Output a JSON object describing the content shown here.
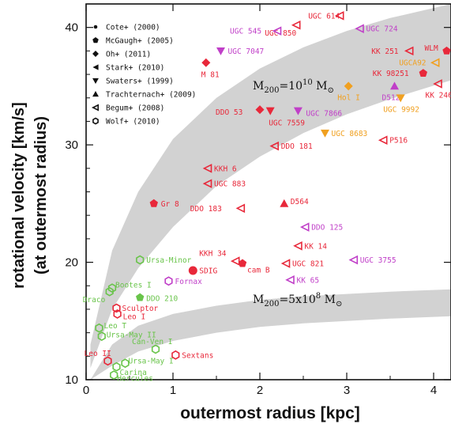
{
  "chart_data": {
    "type": "scatter",
    "xlabel": "outermost radius [kpc]",
    "ylabel_line1": "rotational velocity [km/s]",
    "ylabel_line2": "(at outermost radius)",
    "xlim": [
      0,
      4.2
    ],
    "ylim": [
      10,
      42
    ],
    "xticks": [
      0,
      1,
      2,
      3,
      4
    ],
    "yticks": [
      10,
      20,
      30,
      40
    ],
    "legend": [
      {
        "label": "Cote+ (2000)",
        "marker": "circle-filled-small"
      },
      {
        "label": "McGaugh+ (2005)",
        "marker": "pentagon"
      },
      {
        "label": "Oh+ (2011)",
        "marker": "diamond"
      },
      {
        "label": "Stark+ (2010)",
        "marker": "tri-left"
      },
      {
        "label": "Swaters+ (1999)",
        "marker": "tri-down"
      },
      {
        "label": "Trachternach+ (2009)",
        "marker": "tri-up"
      },
      {
        "label": "Begum+ (2008)",
        "marker": "tri-left-open"
      },
      {
        "label": "Wolf+ (2010)",
        "marker": "circle-open"
      }
    ],
    "bands": [
      {
        "label_main": "M",
        "label_sub": "200",
        "label_value": "=10",
        "label_exp": "10",
        "label_unit": "M",
        "label_unit_sub": "⊙",
        "x": [
          0.05,
          0.3,
          0.6,
          1.0,
          1.5,
          2.0,
          2.5,
          3.0,
          3.5,
          4.2
        ],
        "lower": [
          11.0,
          16.0,
          19.5,
          23.0,
          26.5,
          29.0,
          31.0,
          32.6,
          33.9,
          35.5
        ],
        "upper": [
          13.0,
          21.0,
          26.0,
          30.5,
          34.0,
          36.5,
          38.3,
          39.7,
          40.8,
          42.0
        ]
      },
      {
        "label_main": "M",
        "label_sub": "200",
        "label_value": "=5x10",
        "label_exp": "8",
        "label_unit": "M",
        "label_unit_sub": "⊙",
        "x": [
          0.05,
          0.3,
          0.6,
          1.0,
          1.5,
          2.0,
          2.5,
          3.0,
          3.5,
          4.2
        ],
        "lower": [
          10.0,
          11.2,
          12.4,
          13.3,
          14.0,
          14.5,
          14.8,
          15.0,
          15.2,
          15.4
        ],
        "upper": [
          10.0,
          13.0,
          14.6,
          15.6,
          16.3,
          16.8,
          17.1,
          17.3,
          17.5,
          17.7
        ]
      }
    ],
    "points": [
      {
        "label": "UGC 614",
        "x": 2.92,
        "y": 41.0,
        "marker": "tri-left-open",
        "color": "#e8283a",
        "lx": -40,
        "ly": 0
      },
      {
        "label": "UGC 850",
        "x": 2.42,
        "y": 40.2,
        "marker": "tri-left-open",
        "color": "#e8283a",
        "lx": -40,
        "ly": 10
      },
      {
        "label": "UGC 545",
        "x": 2.2,
        "y": 39.7,
        "marker": "tri-left-open",
        "color": "#c03fc8",
        "lx": -60,
        "ly": 0
      },
      {
        "label": "UGC 724",
        "x": 3.15,
        "y": 39.9,
        "marker": "tri-left-open",
        "color": "#c03fc8",
        "lx": 8,
        "ly": 0
      },
      {
        "label": "UGC 7047",
        "x": 1.55,
        "y": 38.0,
        "marker": "tri-down",
        "color": "#c03fc8",
        "lx": 9,
        "ly": 0
      },
      {
        "label": "M 81",
        "x": 1.38,
        "y": 37.0,
        "marker": "diamond",
        "color": "#e8283a",
        "lx": -6,
        "ly": 15
      },
      {
        "label": "KK 251",
        "x": 3.72,
        "y": 38.0,
        "marker": "tri-left-open",
        "color": "#e8283a",
        "lx": -48,
        "ly": 0
      },
      {
        "label": "WLM",
        "x": 4.15,
        "y": 38.0,
        "marker": "pentagon",
        "color": "#e8283a",
        "lx": -28,
        "ly": -4
      },
      {
        "label": "UGCA92",
        "x": 4.02,
        "y": 37.0,
        "marker": "tri-left-open",
        "color": "#f0a020",
        "lx": -46,
        "ly": 0
      },
      {
        "label": "KK 98251",
        "x": 3.88,
        "y": 36.1,
        "marker": "pentagon",
        "color": "#e8283a",
        "lx": -64,
        "ly": 0
      },
      {
        "label": "Hol I",
        "x": 3.02,
        "y": 35.0,
        "marker": "diamond",
        "color": "#f0a020",
        "lx": -14,
        "ly": 14
      },
      {
        "label": "D512",
        "x": 3.55,
        "y": 35.0,
        "marker": "tri-up",
        "color": "#c03fc8",
        "lx": -16,
        "ly": 14
      },
      {
        "label": "KK 246",
        "x": 4.05,
        "y": 35.2,
        "marker": "tri-left-open",
        "color": "#e8283a",
        "lx": -16,
        "ly": 14
      },
      {
        "label": "UGC 9992",
        "x": 3.62,
        "y": 34.0,
        "marker": "tri-down",
        "color": "#f0a020",
        "lx": -22,
        "ly": 14
      },
      {
        "label": "DDO 53",
        "x": 2.0,
        "y": 33.0,
        "marker": "diamond",
        "color": "#e8283a",
        "lx": -56,
        "ly": 3
      },
      {
        "label": "UGC 7559",
        "x": 2.12,
        "y": 32.9,
        "marker": "tri-down",
        "color": "#e8283a",
        "lx": -2,
        "ly": 15
      },
      {
        "label": "UGC 7866",
        "x": 2.44,
        "y": 32.9,
        "marker": "tri-down",
        "color": "#c03fc8",
        "lx": 10,
        "ly": 3
      },
      {
        "label": "UGC 8683",
        "x": 2.75,
        "y": 31.0,
        "marker": "tri-down",
        "color": "#f0a020",
        "lx": 8,
        "ly": 0
      },
      {
        "label": "DDO 181",
        "x": 2.17,
        "y": 29.9,
        "marker": "tri-left-open",
        "color": "#e8283a",
        "lx": 8,
        "ly": 0
      },
      {
        "label": "P516",
        "x": 3.42,
        "y": 30.4,
        "marker": "tri-left-open",
        "color": "#e8283a",
        "lx": 8,
        "ly": 0
      },
      {
        "label": "KKH 6",
        "x": 1.4,
        "y": 28.0,
        "marker": "tri-left-open",
        "color": "#e8283a",
        "lx": 8,
        "ly": 0
      },
      {
        "label": "UGC 883",
        "x": 1.4,
        "y": 26.7,
        "marker": "tri-left-open",
        "color": "#e8283a",
        "lx": 8,
        "ly": 0
      },
      {
        "label": "Gr 8",
        "x": 0.78,
        "y": 25.0,
        "marker": "pentagon",
        "color": "#e8283a",
        "lx": 9,
        "ly": 0
      },
      {
        "label": "DDO 183",
        "x": 1.78,
        "y": 24.6,
        "marker": "tri-left-open",
        "color": "#e8283a",
        "lx": -64,
        "ly": 0
      },
      {
        "label": "D564",
        "x": 2.28,
        "y": 25.0,
        "marker": "tri-up",
        "color": "#e8283a",
        "lx": 8,
        "ly": -3
      },
      {
        "label": "DDO 125",
        "x": 2.52,
        "y": 23.0,
        "marker": "tri-left-open",
        "color": "#c03fc8",
        "lx": 8,
        "ly": 0
      },
      {
        "label": "KK 14",
        "x": 2.44,
        "y": 21.4,
        "marker": "tri-left-open",
        "color": "#e8283a",
        "lx": 8,
        "ly": 0
      },
      {
        "label": "KKH 34",
        "x": 1.72,
        "y": 20.1,
        "marker": "tri-left-open",
        "color": "#e8283a",
        "lx": -46,
        "ly": -10
      },
      {
        "label": "cam B",
        "x": 1.8,
        "y": 19.9,
        "marker": "pentagon",
        "color": "#e8283a",
        "lx": 6,
        "ly": 8
      },
      {
        "label": "UGC 821",
        "x": 2.3,
        "y": 19.9,
        "marker": "tri-left-open",
        "color": "#e8283a",
        "lx": 8,
        "ly": 0
      },
      {
        "label": "UGC 3755",
        "x": 3.08,
        "y": 20.2,
        "marker": "tri-left-open",
        "color": "#c03fc8",
        "lx": 8,
        "ly": 0
      },
      {
        "label": "SDIG",
        "x": 1.23,
        "y": 19.3,
        "marker": "circle-filled",
        "color": "#e8283a",
        "lx": 8,
        "ly": 0
      },
      {
        "label": "KK 65",
        "x": 2.35,
        "y": 18.5,
        "marker": "tri-left-open",
        "color": "#c03fc8",
        "lx": 8,
        "ly": 0
      },
      {
        "label": "Ursa-Minor",
        "x": 0.62,
        "y": 20.2,
        "marker": "circle-open",
        "color": "#69c44a",
        "lx": 8,
        "ly": 0
      },
      {
        "label": "Fornax",
        "x": 0.95,
        "y": 18.4,
        "marker": "circle-open",
        "color": "#c03fc8",
        "lx": 8,
        "ly": 0
      },
      {
        "label": "Bootes I",
        "x": 0.3,
        "y": 17.8,
        "marker": "circle-open",
        "color": "#69c44a",
        "lx": 4,
        "ly": -4
      },
      {
        "label": "Draco",
        "x": 0.27,
        "y": 17.5,
        "marker": "circle-open",
        "color": "#69c44a",
        "lx": -34,
        "ly": 10
      },
      {
        "label": "DDO 210",
        "x": 0.62,
        "y": 17.0,
        "marker": "pentagon",
        "color": "#69c44a",
        "lx": 8,
        "ly": 1
      },
      {
        "label": "Sculptor",
        "x": 0.35,
        "y": 16.1,
        "marker": "circle-open",
        "color": "#e8283a",
        "lx": 7,
        "ly": 0
      },
      {
        "label": "Leo I",
        "x": 0.36,
        "y": 15.6,
        "marker": "circle-open",
        "color": "#e8283a",
        "lx": 7,
        "ly": 3
      },
      {
        "label": "Leo T",
        "x": 0.15,
        "y": 14.4,
        "marker": "circle-open",
        "color": "#69c44a",
        "lx": 6,
        "ly": -3
      },
      {
        "label": "Ursa-May II",
        "x": 0.18,
        "y": 13.7,
        "marker": "circle-open",
        "color": "#69c44a",
        "lx": 6,
        "ly": -2
      },
      {
        "label": "Can-Ven I",
        "x": 0.8,
        "y": 12.6,
        "marker": "circle-open",
        "color": "#69c44a",
        "lx": -30,
        "ly": -10
      },
      {
        "label": "Sextans",
        "x": 1.03,
        "y": 12.1,
        "marker": "circle-open",
        "color": "#e8283a",
        "lx": 8,
        "ly": 0
      },
      {
        "label": "Leo II",
        "x": 0.25,
        "y": 11.6,
        "marker": "circle-open",
        "color": "#e8283a",
        "lx": -30,
        "ly": -10
      },
      {
        "label": "Ursa-May I",
        "x": 0.45,
        "y": 11.4,
        "marker": "circle-open",
        "color": "#69c44a",
        "lx": 4,
        "ly": -3
      },
      {
        "label": "Carina",
        "x": 0.35,
        "y": 11.1,
        "marker": "circle-open",
        "color": "#69c44a",
        "lx": 4,
        "ly": 7
      },
      {
        "label": "Hercules",
        "x": 0.32,
        "y": 10.4,
        "marker": "circle-open",
        "color": "#69c44a",
        "lx": 4,
        "ly": 4
      }
    ]
  }
}
